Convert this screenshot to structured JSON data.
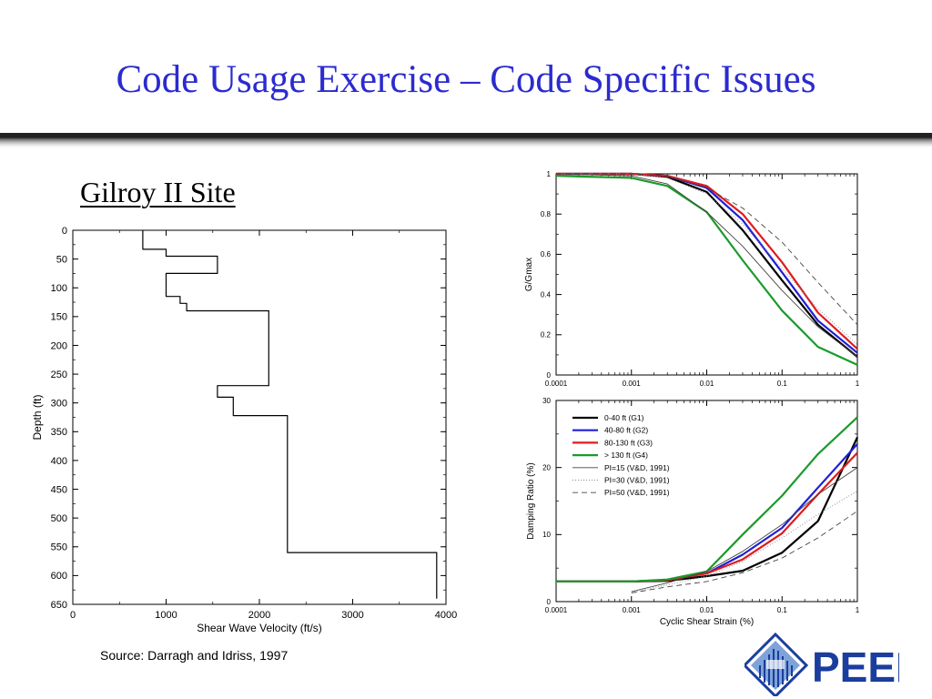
{
  "title": "Code Usage Exercise – Code Specific Issues",
  "subtitle": "Gilroy II Site",
  "source": "Source: Darragh and Idriss, 1997",
  "logo_text": "PEER",
  "colors": {
    "title": "#2b2bd0",
    "logo": "#1a3d9e",
    "g1": "#000000",
    "g2": "#1f1fd6",
    "g3": "#e01b1b",
    "g4": "#1a9a2a",
    "vd": "#444444"
  },
  "chart_data": [
    {
      "id": "velocity-profile",
      "type": "line",
      "xlabel": "Shear Wave Velocity (ft/s)",
      "ylabel": "Depth (ft)",
      "xlim": [
        0,
        4000
      ],
      "ylim": [
        650,
        0
      ],
      "y_inverted": true,
      "xticks": [
        0,
        1000,
        2000,
        3000,
        4000
      ],
      "yticks": [
        0,
        50,
        100,
        150,
        200,
        250,
        300,
        350,
        400,
        450,
        500,
        550,
        600,
        650
      ],
      "series": [
        {
          "x": [
            750,
            750,
            1000,
            1000,
            1550,
            1550,
            1000,
            1000,
            1150,
            1150,
            1220,
            1220,
            2100,
            2100,
            1550,
            1550,
            1720,
            1720,
            2300,
            2300,
            3900,
            3900
          ],
          "y": [
            0,
            33,
            33,
            45,
            45,
            75,
            75,
            115,
            115,
            127,
            127,
            140,
            140,
            270,
            270,
            290,
            290,
            322,
            322,
            560,
            560,
            640
          ]
        }
      ]
    },
    {
      "id": "modulus-reduction",
      "type": "line",
      "x_scale": "log",
      "ylabel": "G/Gmax",
      "xlim": [
        0.0001,
        1
      ],
      "ylim": [
        0,
        1
      ],
      "xticks": [
        0.0001,
        0.001,
        0.01,
        0.1,
        1
      ],
      "xticklabels": [
        "0.0001",
        "0.001",
        "0.01",
        "0.1",
        "1"
      ],
      "yticks": [
        0,
        0.2,
        0.4,
        0.6,
        0.8,
        1
      ],
      "series": [
        {
          "key": "g1",
          "x": [
            0.0001,
            0.001,
            0.003,
            0.01,
            0.03,
            0.1,
            0.3,
            1
          ],
          "y": [
            1,
            1,
            0.985,
            0.91,
            0.72,
            0.47,
            0.25,
            0.09
          ]
        },
        {
          "key": "g2",
          "x": [
            0.0001,
            0.001,
            0.003,
            0.01,
            0.03,
            0.1,
            0.3,
            1
          ],
          "y": [
            1,
            1,
            0.99,
            0.93,
            0.77,
            0.51,
            0.27,
            0.11
          ]
        },
        {
          "key": "g3",
          "x": [
            0.0001,
            0.001,
            0.003,
            0.01,
            0.03,
            0.1,
            0.3,
            1
          ],
          "y": [
            1,
            1,
            0.99,
            0.94,
            0.8,
            0.56,
            0.31,
            0.13
          ]
        },
        {
          "key": "g4",
          "x": [
            0.0001,
            0.001,
            0.003,
            0.01,
            0.03,
            0.1,
            0.3,
            1
          ],
          "y": [
            0.99,
            0.98,
            0.94,
            0.81,
            0.57,
            0.32,
            0.14,
            0.05
          ]
        },
        {
          "key": "pi15",
          "x": [
            0.0001,
            0.001,
            0.003,
            0.01,
            0.03,
            0.1,
            0.3,
            1
          ],
          "y": [
            1,
            0.99,
            0.95,
            0.81,
            0.64,
            0.42,
            0.24,
            0.09
          ]
        },
        {
          "key": "pi30",
          "x": [
            0.0001,
            0.001,
            0.003,
            0.01,
            0.03,
            0.1,
            0.3,
            1
          ],
          "y": [
            1,
            1,
            0.98,
            0.9,
            0.75,
            0.53,
            0.33,
            0.15
          ]
        },
        {
          "key": "pi50",
          "x": [
            0.0001,
            0.001,
            0.003,
            0.01,
            0.03,
            0.1,
            0.3,
            1
          ],
          "y": [
            1,
            1,
            0.99,
            0.93,
            0.83,
            0.66,
            0.46,
            0.25
          ]
        }
      ]
    },
    {
      "id": "damping-ratio",
      "type": "line",
      "x_scale": "log",
      "xlabel": "Cyclic Shear Strain (%)",
      "ylabel": "Damping Ratio (%)",
      "xlim": [
        0.0001,
        1
      ],
      "ylim": [
        0,
        30
      ],
      "xticks": [
        0.0001,
        0.001,
        0.01,
        0.1,
        1
      ],
      "xticklabels": [
        "0.0001",
        "0.001",
        "0.01",
        "0.1",
        "1"
      ],
      "yticks": [
        0,
        10,
        20,
        30
      ],
      "legend_position": "top-left",
      "series": [
        {
          "key": "g1",
          "name": "0-40 ft (G1)",
          "x": [
            0.0001,
            0.001,
            0.003,
            0.01,
            0.03,
            0.1,
            0.3,
            1
          ],
          "y": [
            3,
            3,
            3.1,
            3.8,
            4.6,
            7.3,
            12,
            24.5
          ]
        },
        {
          "key": "g2",
          "name": "40-80 ft (G2)",
          "x": [
            0.0001,
            0.001,
            0.003,
            0.01,
            0.03,
            0.1,
            0.3,
            1
          ],
          "y": [
            3,
            3,
            3.2,
            4.2,
            7,
            11,
            17,
            23.5
          ]
        },
        {
          "key": "g3",
          "name": "80-130 ft (G3)",
          "x": [
            0.0001,
            0.001,
            0.003,
            0.01,
            0.03,
            0.1,
            0.3,
            1
          ],
          "y": [
            3,
            3,
            3.2,
            4.2,
            6.3,
            10.2,
            16,
            22.2
          ]
        },
        {
          "key": "g4",
          "name": "> 130 ft (G4)",
          "x": [
            0.0001,
            0.001,
            0.003,
            0.01,
            0.03,
            0.1,
            0.3,
            1
          ],
          "y": [
            3,
            3,
            3.3,
            4.5,
            10,
            15.8,
            22,
            27.5
          ]
        },
        {
          "key": "pi15",
          "name": "PI=15 (V&D, 1991)",
          "x": [
            0.001,
            0.003,
            0.01,
            0.03,
            0.1,
            0.3,
            1
          ],
          "y": [
            1.5,
            2.8,
            4.5,
            7.5,
            11.5,
            16,
            20
          ]
        },
        {
          "key": "pi30",
          "name": "PI=30 (V&D, 1991)",
          "x": [
            0.001,
            0.003,
            0.01,
            0.03,
            0.1,
            0.3,
            1
          ],
          "y": [
            1.4,
            2.5,
            3.8,
            6,
            9.5,
            13,
            16.5
          ]
        },
        {
          "key": "pi50",
          "name": "PI=50 (V&D, 1991)",
          "x": [
            0.001,
            0.003,
            0.01,
            0.03,
            0.1,
            0.3,
            1
          ],
          "y": [
            1.3,
            2.2,
            3,
            4.3,
            6.5,
            9.5,
            13.5
          ]
        }
      ]
    }
  ]
}
